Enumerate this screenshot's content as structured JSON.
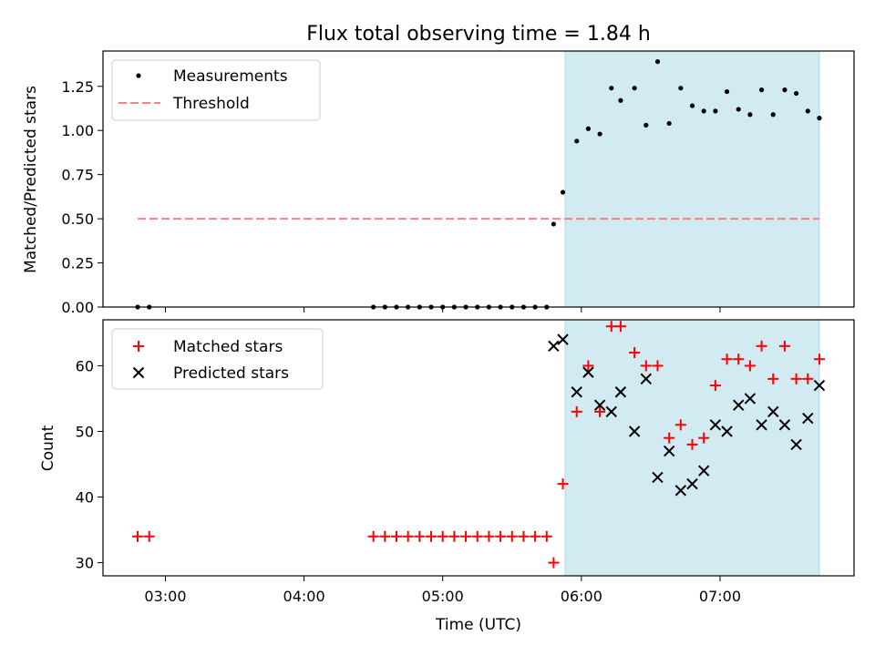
{
  "title": "Flux total observing time = 1.84 h",
  "colors": {
    "measurement": "#000000",
    "threshold": "#ff7f7f",
    "matched": "#ff0000",
    "predicted": "#000000",
    "shade": "#add8e6"
  },
  "chart_data": [
    {
      "type": "scatter",
      "ylabel": "Matched/Predicted stars",
      "ylim": [
        0,
        1.45
      ],
      "yticks": [
        0,
        0.25,
        0.5,
        0.75,
        1.0,
        1.25
      ],
      "yticklabels": [
        "0.00",
        "0.25",
        "0.50",
        "0.75",
        "1.00",
        "1.25"
      ],
      "xticks": [
        "03:00",
        "04:00",
        "05:00",
        "06:00",
        "07:00"
      ],
      "xlim": [
        "02:33",
        "07:58"
      ],
      "shaded_region": [
        "05:53",
        "07:43"
      ],
      "legend_position": "upper-left",
      "series": [
        {
          "name": "Measurements",
          "marker": "dot",
          "x": [
            "02:48",
            "02:53",
            "04:30",
            "04:35",
            "04:40",
            "04:45",
            "04:50",
            "04:55",
            "05:00",
            "05:05",
            "05:10",
            "05:15",
            "05:20",
            "05:25",
            "05:30",
            "05:35",
            "05:40",
            "05:45",
            "05:48",
            "05:52",
            "05:58",
            "06:03",
            "06:08",
            "06:13",
            "06:17",
            "06:23",
            "06:28",
            "06:33",
            "06:38",
            "06:43",
            "06:48",
            "06:53",
            "06:58",
            "07:03",
            "07:08",
            "07:13",
            "07:18",
            "07:23",
            "07:28",
            "07:33",
            "07:38",
            "07:43"
          ],
          "values": [
            0,
            0,
            0,
            0,
            0,
            0,
            0,
            0,
            0,
            0,
            0,
            0,
            0,
            0,
            0,
            0,
            0,
            0,
            0.47,
            0.65,
            0.94,
            1.01,
            0.98,
            1.24,
            1.17,
            1.24,
            1.03,
            1.39,
            1.04,
            1.24,
            1.14,
            1.11,
            1.11,
            1.22,
            1.12,
            1.09,
            1.23,
            1.09,
            1.23,
            1.21,
            1.11,
            1.07
          ]
        },
        {
          "name": "Threshold",
          "style": "dashed",
          "x": [
            "02:48",
            "07:43"
          ],
          "values": [
            0.5,
            0.5
          ]
        }
      ]
    },
    {
      "type": "scatter",
      "xlabel": "Time (UTC)",
      "ylabel": "Count",
      "ylim": [
        28,
        67
      ],
      "yticks": [
        30,
        40,
        50,
        60
      ],
      "yticklabels": [
        "30",
        "40",
        "50",
        "60"
      ],
      "xticks": [
        "03:00",
        "04:00",
        "05:00",
        "06:00",
        "07:00"
      ],
      "xlim": [
        "02:33",
        "07:58"
      ],
      "shaded_region": [
        "05:53",
        "07:43"
      ],
      "legend_position": "upper-left",
      "series": [
        {
          "name": "Matched stars",
          "marker": "plus",
          "x": [
            "02:48",
            "02:53",
            "04:30",
            "04:35",
            "04:40",
            "04:45",
            "04:50",
            "04:55",
            "05:00",
            "05:05",
            "05:10",
            "05:15",
            "05:20",
            "05:25",
            "05:30",
            "05:35",
            "05:40",
            "05:45",
            "05:48",
            "05:52",
            "05:58",
            "06:03",
            "06:08",
            "06:13",
            "06:17",
            "06:23",
            "06:28",
            "06:33",
            "06:38",
            "06:43",
            "06:48",
            "06:53",
            "06:58",
            "07:03",
            "07:08",
            "07:13",
            "07:18",
            "07:23",
            "07:28",
            "07:33",
            "07:38",
            "07:43"
          ],
          "values": [
            34,
            34,
            34,
            34,
            34,
            34,
            34,
            34,
            34,
            34,
            34,
            34,
            34,
            34,
            34,
            34,
            34,
            34,
            30,
            42,
            53,
            60,
            53,
            66,
            66,
            62,
            60,
            60,
            49,
            51,
            48,
            49,
            57,
            61,
            61,
            60,
            63,
            58,
            63,
            58,
            58,
            61
          ]
        },
        {
          "name": "Predicted stars",
          "marker": "x",
          "x": [
            "05:48",
            "05:52",
            "05:58",
            "06:03",
            "06:08",
            "06:13",
            "06:17",
            "06:23",
            "06:28",
            "06:33",
            "06:38",
            "06:43",
            "06:48",
            "06:53",
            "06:58",
            "07:03",
            "07:08",
            "07:13",
            "07:18",
            "07:23",
            "07:28",
            "07:33",
            "07:38",
            "07:43"
          ],
          "values": [
            63,
            64,
            56,
            59,
            54,
            53,
            56,
            50,
            58,
            43,
            47,
            41,
            42,
            44,
            51,
            50,
            54,
            55,
            51,
            53,
            51,
            48,
            52,
            57
          ]
        }
      ]
    }
  ]
}
